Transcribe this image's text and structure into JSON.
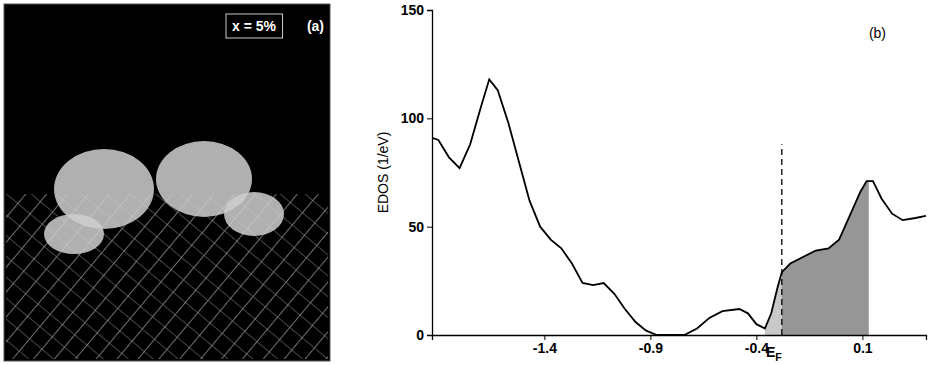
{
  "image_panel": {
    "letter": "(a)",
    "label": "x = 5%"
  },
  "chart_data": {
    "type": "line",
    "panel_letter": "(b)",
    "y_label": "EDOS (1/eV)",
    "x": [
      -1.93,
      -1.9,
      -1.85,
      -1.8,
      -1.75,
      -1.7,
      -1.66,
      -1.62,
      -1.57,
      -1.52,
      -1.47,
      -1.42,
      -1.37,
      -1.32,
      -1.27,
      -1.22,
      -1.17,
      -1.12,
      -1.07,
      -1.02,
      -0.97,
      -0.92,
      -0.87,
      -0.8,
      -0.74,
      -0.68,
      -0.62,
      -0.56,
      -0.48,
      -0.44,
      -0.4,
      -0.36,
      -0.33,
      -0.3,
      -0.28,
      -0.24,
      -0.18,
      -0.12,
      -0.06,
      -0.01,
      0.04,
      0.09,
      0.12,
      0.15,
      0.19,
      0.24,
      0.29,
      0.35,
      0.4
    ],
    "series": [
      {
        "color": "#000000",
        "values": [
          91,
          90,
          82,
          77,
          88,
          105,
          118,
          113,
          98,
          80,
          62,
          50,
          44,
          40,
          33,
          24,
          23,
          24,
          19,
          12,
          6,
          2,
          0,
          0,
          0,
          3,
          8,
          11,
          12,
          10,
          5,
          3,
          10,
          22,
          29,
          33,
          36,
          39,
          40,
          44,
          55,
          66,
          71,
          71,
          63,
          56,
          53,
          54,
          55
        ]
      }
    ],
    "xlim": [
      -1.93,
      0.4
    ],
    "ylim": [
      0,
      150
    ],
    "xticks": [
      -1.4,
      -0.9,
      -0.4,
      0.1
    ],
    "yticks": [
      0,
      50,
      100,
      150
    ],
    "shaded_regions": [
      {
        "xlim": [
          -0.36,
          -0.28
        ],
        "color": "#c8c8c8"
      },
      {
        "xlim": [
          -0.28,
          0.13
        ],
        "color": "#969696"
      }
    ],
    "vlines": [
      {
        "value": -0.28,
        "ymax": 88,
        "label": "E",
        "label_sub": "F",
        "line_style": "dashed"
      }
    ]
  }
}
